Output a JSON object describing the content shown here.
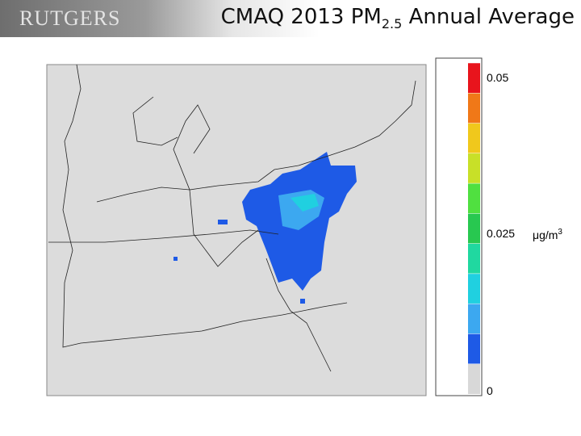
{
  "header": {
    "logo": "RUTGERS",
    "title": "CMAQ 2013 PM",
    "title_sub": "2.5",
    "title_end": " Annual Average"
  },
  "colorbar": {
    "max_label": "0.05",
    "mid_label": "0.025",
    "min_label": "0",
    "unit": "μg/m",
    "unit_sup": "3",
    "colors": [
      "#e8141c",
      "#f07818",
      "#f0c81c",
      "#c8e028",
      "#50e040",
      "#28c850",
      "#20d8a0",
      "#20d0e0",
      "#3ca8f0",
      "#1e5ae6",
      "#d8d8d8"
    ]
  }
}
